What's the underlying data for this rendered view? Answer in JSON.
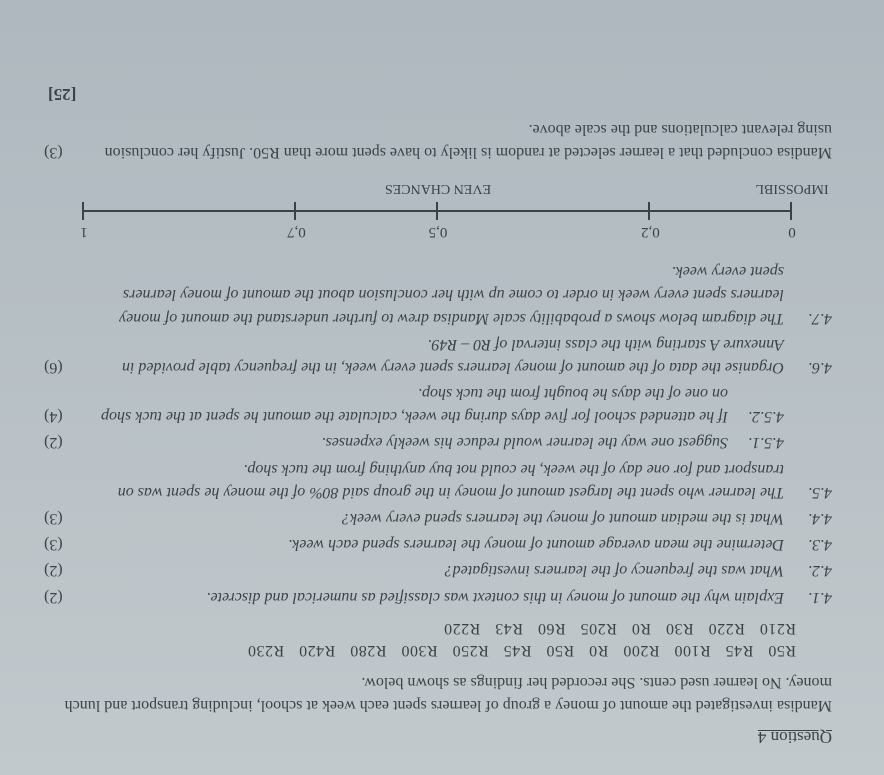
{
  "heading": "Question 4",
  "intro": "Mandisa investigated the amount of money a group of learners spent each week at school, including transport and lunch money. No learner used cents. She recorded her findings as shown below.",
  "data_row1": "R50 R45 R100 R200 R0 R50 R45 R250 R300 R280 R420 R230",
  "data_row2": "R210 R220 R30 R0 R205 R60 R43 R220",
  "items": [
    {
      "n": "4.1.",
      "t": "Explain why the amount of money in this context was classified as numerical and discrete.",
      "m": "(2)"
    },
    {
      "n": "4.2.",
      "t": "What was the frequency of the learners investigated?",
      "m": "(2)"
    },
    {
      "n": "4.3.",
      "t": "Determine the mean average amount of money the learners spend each week.",
      "m": "(3)"
    },
    {
      "n": "4.4.",
      "t": "What is the median amount of money the learners spend every week?",
      "m": "(3)"
    },
    {
      "n": "4.5.",
      "t": "The learner who spent the largest amount of money in the group said 80% of the money he spent was on transport and for one day of the week, he could not buy anything from the tuck shop.",
      "m": ""
    }
  ],
  "sub_items": [
    {
      "n": "4.5.1.",
      "t": "Suggest one way the learner would reduce his weekly expenses.",
      "m": "(2)"
    },
    {
      "n": "4.5.2.",
      "t": "If he attended school for five days during the week, calculate the amount he spent at the tuck shop on one of the days he bought from the tuck shop.",
      "m": "(4)"
    }
  ],
  "items2": [
    {
      "n": "4.6.",
      "t": "Organise the data of the amount of money learners spent every week, in the frequency table provided in Annexure A starting with the class interval of R0 – R49.",
      "m": "(6)"
    },
    {
      "n": "4.7.",
      "t": "The diagram below shows a probability scale Mandisa drew to further understand the amount of money learners spent every week in order to come up with her conclusion about the amount of money learners spent every week.",
      "m": ""
    }
  ],
  "scale": {
    "ticks": [
      {
        "pos": 0,
        "num": "0",
        "word": "IMPOSSIBL"
      },
      {
        "pos": 20,
        "num": "0,2",
        "word": ""
      },
      {
        "pos": 50,
        "num": "0,5",
        "word": "EVEN CHANCES"
      },
      {
        "pos": 70,
        "num": "0,7",
        "word": ""
      },
      {
        "pos": 100,
        "num": "1",
        "word": ""
      }
    ]
  },
  "conclusion": "Mandisa concluded that a learner selected at random is likely to have spent more than R50. Justify her conclusion using relevant calculations and the scale above.",
  "conclusion_marks": "(3)",
  "total": "[25]"
}
